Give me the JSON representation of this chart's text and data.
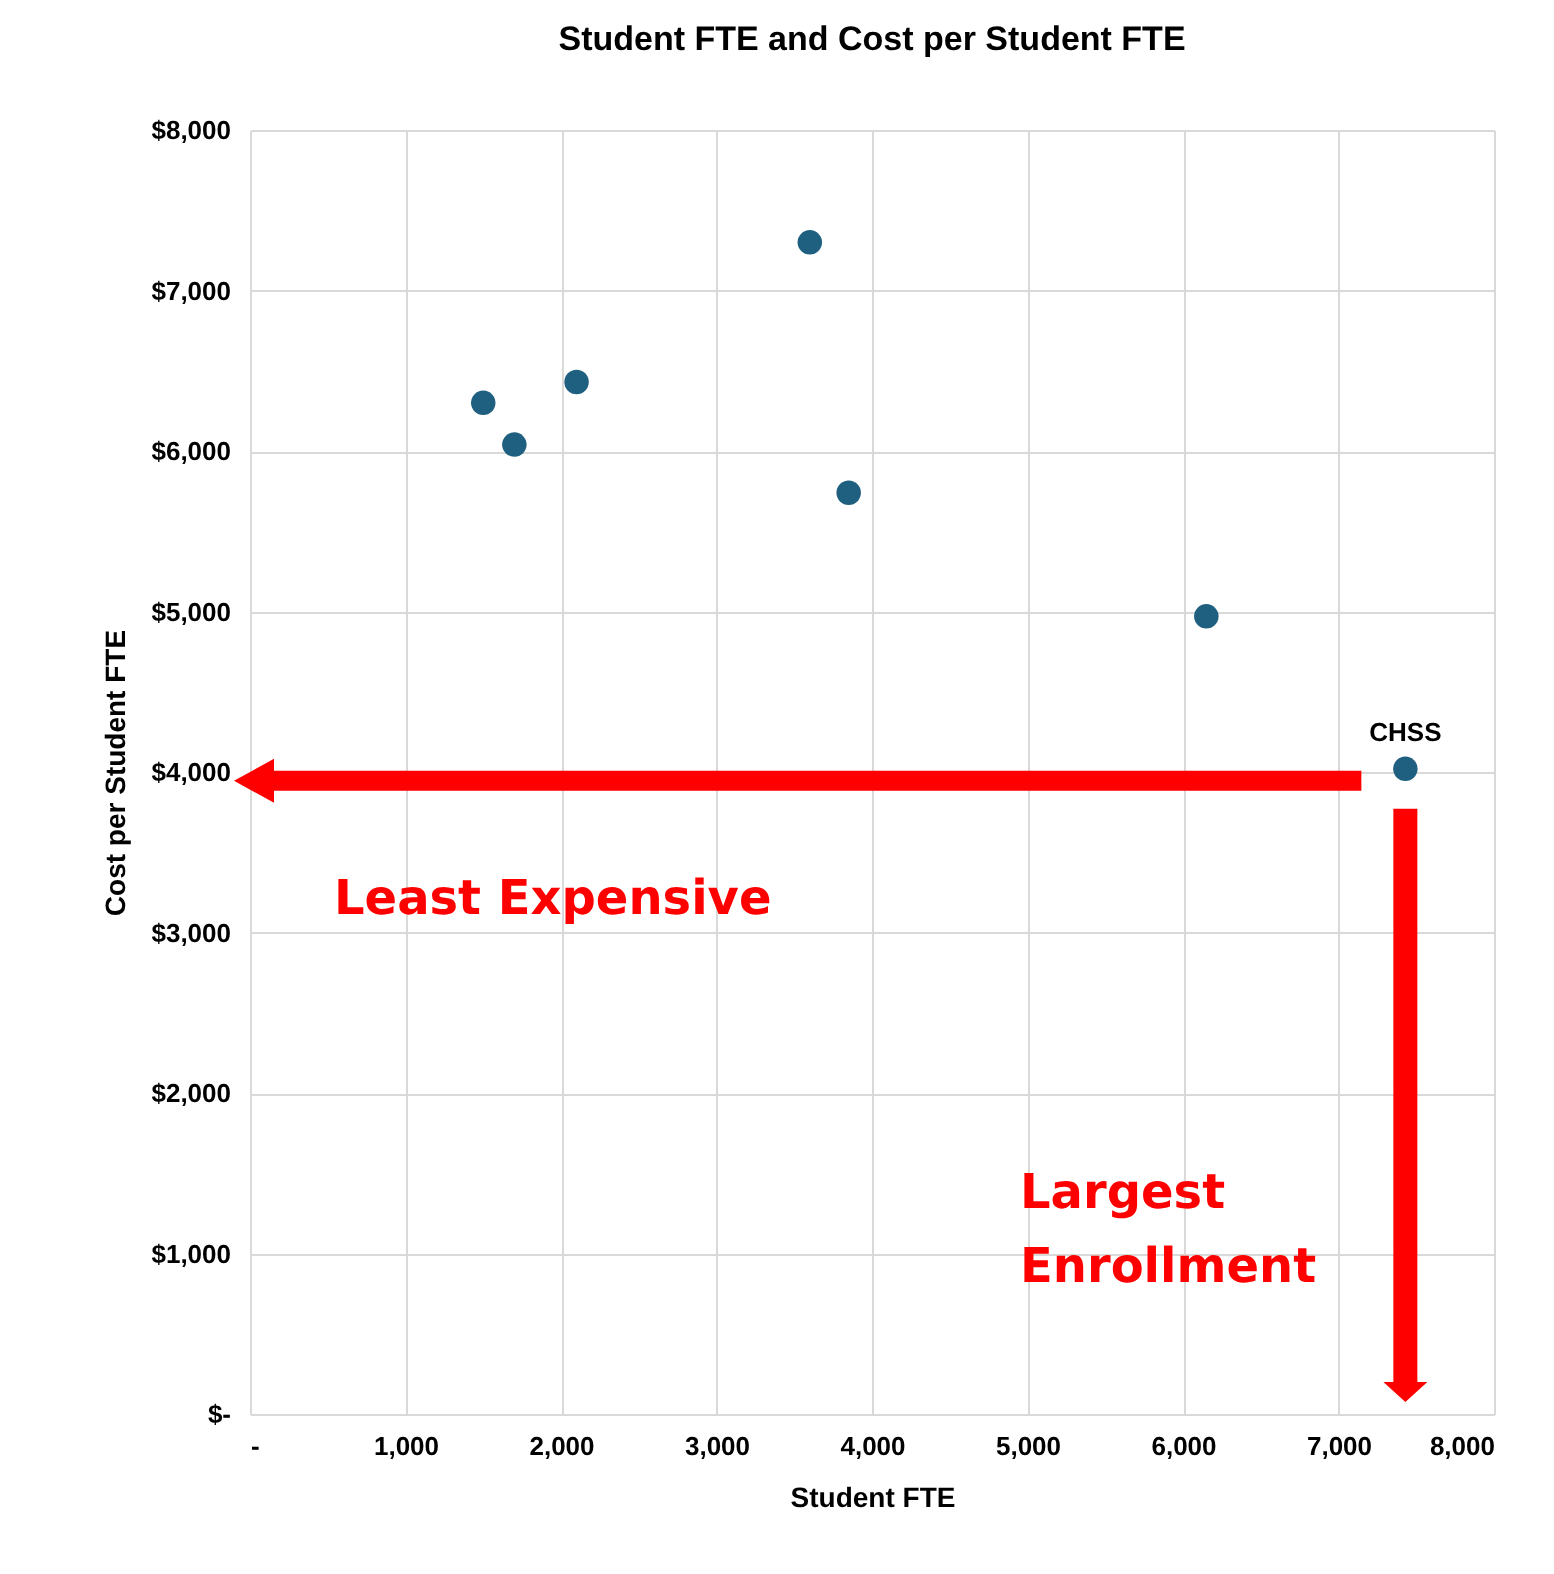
{
  "chart_data": {
    "type": "scatter",
    "title": "Student FTE and Cost per Student FTE",
    "xlabel": "Student FTE",
    "ylabel": "Cost per Student FTE",
    "x": [
      1500,
      1700,
      2100,
      3600,
      3850,
      6150,
      7430
    ],
    "series": [
      {
        "color": "#1f5f7f",
        "values": [
          6300,
          6040,
          6430,
          7300,
          5740,
          4970,
          4020
        ]
      }
    ],
    "xlim": [
      0,
      8000
    ],
    "xticks": [
      {
        "value": 0,
        "label": "-"
      },
      {
        "value": 1000,
        "label": "1,000"
      },
      {
        "value": 2000,
        "label": "2,000"
      },
      {
        "value": 3000,
        "label": "3,000"
      },
      {
        "value": 4000,
        "label": "4,000"
      },
      {
        "value": 5000,
        "label": "5,000"
      },
      {
        "value": 6000,
        "label": "6,000"
      },
      {
        "value": 7000,
        "label": "7,000"
      },
      {
        "value": 8000,
        "label": "8,000"
      }
    ],
    "ylim": [
      0,
      8000
    ],
    "yticks": [
      {
        "value": 0,
        "label": "$-"
      },
      {
        "value": 1000,
        "label": "$1,000"
      },
      {
        "value": 2000,
        "label": "$2,000"
      },
      {
        "value": 3000,
        "label": "$3,000"
      },
      {
        "value": 4000,
        "label": "$4,000"
      },
      {
        "value": 5000,
        "label": "$5,000"
      },
      {
        "value": 6000,
        "label": "$6,000"
      },
      {
        "value": 7000,
        "label": "$7,000"
      },
      {
        "value": 8000,
        "label": "$8,000"
      }
    ],
    "grid": true,
    "marker": "circle",
    "annotations": [
      {
        "text": "CHSS",
        "x": 7430,
        "y": 4020
      },
      "Least Expensive",
      "Largest Enrollment"
    ]
  }
}
